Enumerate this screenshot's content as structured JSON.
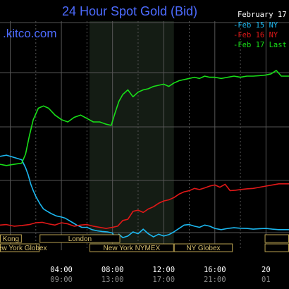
{
  "title": "24 Hour Spot Gold (Bid)",
  "brand": ".kitco.com",
  "date": "February 17",
  "colors": {
    "background": "#000000",
    "grid": "#555555",
    "highlight": "#141c14",
    "session_border": "#b8a050",
    "session_text": "#d8c070"
  },
  "chart_data": {
    "type": "line",
    "title": "24 Hour Spot Gold (Bid)",
    "x_unit": "hours (New York time)",
    "xlim": [
      -0.8,
      21.8
    ],
    "ylim": [
      0,
      10
    ],
    "highlight_range": [
      6.2,
      12.8
    ],
    "ticks": [
      {
        "x": 4,
        "label": "04:00",
        "sub": "09:00"
      },
      {
        "x": 8,
        "label": "08:00",
        "sub": "13:00"
      },
      {
        "x": 12,
        "label": "12:00",
        "sub": "17:00"
      },
      {
        "x": 16,
        "label": "16:00",
        "sub": "21:00"
      },
      {
        "x": 20,
        "label": "20",
        "sub": "01"
      }
    ],
    "sessions": [
      {
        "label": "Kong",
        "row": 0,
        "x0": -0.8,
        "x1": 0.9
      },
      {
        "label": "New York Globex",
        "row": 1,
        "x0": -0.8,
        "x1": 2.3
      },
      {
        "label": "London",
        "row": 0,
        "x0": 2.3,
        "x1": 8.6
      },
      {
        "label": "New York NYMEX",
        "row": 1,
        "x0": 6.2,
        "x1": 12.8
      },
      {
        "label": "NY Globex",
        "row": 1,
        "x0": 12.8,
        "x1": 17.4
      },
      {
        "label": "",
        "row": 0,
        "x0": 19.9,
        "x1": 21.8
      },
      {
        "label": "",
        "row": 1,
        "x0": 19.9,
        "x1": 21.8
      }
    ],
    "series": [
      {
        "name": "Feb 15 NY",
        "color": "#1cb8f0",
        "points": [
          [
            -0.8,
            4.1
          ],
          [
            -0.3,
            4.15
          ],
          [
            0.3,
            4.05
          ],
          [
            0.9,
            3.95
          ],
          [
            1.2,
            3.6
          ],
          [
            1.4,
            3.3
          ],
          [
            1.6,
            2.9
          ],
          [
            1.8,
            2.6
          ],
          [
            2.0,
            2.35
          ],
          [
            2.3,
            2.05
          ],
          [
            2.6,
            1.8
          ],
          [
            2.9,
            1.7
          ],
          [
            3.2,
            1.6
          ],
          [
            3.6,
            1.5
          ],
          [
            4.0,
            1.45
          ],
          [
            4.3,
            1.4
          ],
          [
            4.6,
            1.3
          ],
          [
            4.9,
            1.2
          ],
          [
            5.2,
            1.1
          ],
          [
            5.6,
            1.0
          ],
          [
            6.0,
            1.0
          ],
          [
            6.4,
            0.9
          ],
          [
            6.8,
            0.85
          ],
          [
            7.2,
            0.82
          ],
          [
            7.6,
            0.8
          ],
          [
            8.0,
            0.75
          ],
          [
            8.3,
            0.4
          ],
          [
            8.5,
            0.7
          ],
          [
            8.8,
            0.55
          ],
          [
            9.2,
            0.62
          ],
          [
            9.6,
            0.8
          ],
          [
            10.0,
            0.72
          ],
          [
            10.4,
            0.92
          ],
          [
            10.8,
            0.72
          ],
          [
            11.2,
            0.58
          ],
          [
            11.6,
            0.7
          ],
          [
            12.0,
            0.62
          ],
          [
            12.4,
            0.68
          ],
          [
            12.8,
            0.8
          ],
          [
            13.2,
            0.95
          ],
          [
            13.6,
            1.1
          ],
          [
            14.0,
            1.12
          ],
          [
            14.4,
            1.05
          ],
          [
            14.8,
            1.0
          ],
          [
            15.2,
            1.1
          ],
          [
            15.6,
            1.05
          ],
          [
            16.0,
            0.95
          ],
          [
            16.5,
            0.9
          ],
          [
            17.0,
            0.95
          ],
          [
            17.5,
            0.98
          ],
          [
            18.0,
            0.96
          ],
          [
            18.5,
            0.95
          ],
          [
            19.0,
            0.92
          ],
          [
            19.5,
            0.94
          ],
          [
            20.0,
            0.95
          ],
          [
            20.5,
            0.92
          ],
          [
            21.0,
            0.9
          ],
          [
            21.8,
            0.9
          ]
        ]
      },
      {
        "name": "Feb 16 NY",
        "color": "#e01818",
        "points": [
          [
            -0.8,
            1.1
          ],
          [
            -0.3,
            1.12
          ],
          [
            0.3,
            1.05
          ],
          [
            0.9,
            1.08
          ],
          [
            1.5,
            1.12
          ],
          [
            2.0,
            1.2
          ],
          [
            2.5,
            1.22
          ],
          [
            3.0,
            1.15
          ],
          [
            3.5,
            1.1
          ],
          [
            4.0,
            1.2
          ],
          [
            4.5,
            1.15
          ],
          [
            5.0,
            1.05
          ],
          [
            5.5,
            1.1
          ],
          [
            6.0,
            1.12
          ],
          [
            6.5,
            1.05
          ],
          [
            7.0,
            1.0
          ],
          [
            7.5,
            0.95
          ],
          [
            8.0,
            1.0
          ],
          [
            8.4,
            1.05
          ],
          [
            8.8,
            1.3
          ],
          [
            9.2,
            1.35
          ],
          [
            9.6,
            1.7
          ],
          [
            10.0,
            1.75
          ],
          [
            10.4,
            1.65
          ],
          [
            10.8,
            1.8
          ],
          [
            11.2,
            1.9
          ],
          [
            11.6,
            2.05
          ],
          [
            12.0,
            2.15
          ],
          [
            12.4,
            2.2
          ],
          [
            12.8,
            2.3
          ],
          [
            13.2,
            2.45
          ],
          [
            13.6,
            2.55
          ],
          [
            14.0,
            2.6
          ],
          [
            14.4,
            2.7
          ],
          [
            14.8,
            2.65
          ],
          [
            15.2,
            2.72
          ],
          [
            15.6,
            2.8
          ],
          [
            16.0,
            2.85
          ],
          [
            16.4,
            2.75
          ],
          [
            16.8,
            2.88
          ],
          [
            17.2,
            2.6
          ],
          [
            17.6,
            2.62
          ],
          [
            18.0,
            2.65
          ],
          [
            18.5,
            2.68
          ],
          [
            19.0,
            2.7
          ],
          [
            19.5,
            2.75
          ],
          [
            20.0,
            2.8
          ],
          [
            20.5,
            2.85
          ],
          [
            21.0,
            2.9
          ],
          [
            21.8,
            2.9
          ]
        ]
      },
      {
        "name": "Feb 17 Last",
        "color": "#18e018",
        "points": [
          [
            -0.8,
            3.75
          ],
          [
            -0.3,
            3.7
          ],
          [
            0.3,
            3.75
          ],
          [
            0.9,
            3.8
          ],
          [
            1.2,
            4.2
          ],
          [
            1.5,
            5.0
          ],
          [
            1.8,
            5.7
          ],
          [
            2.2,
            6.2
          ],
          [
            2.6,
            6.3
          ],
          [
            3.0,
            6.2
          ],
          [
            3.5,
            5.9
          ],
          [
            4.0,
            5.7
          ],
          [
            4.5,
            5.6
          ],
          [
            5.0,
            5.8
          ],
          [
            5.5,
            5.9
          ],
          [
            6.0,
            5.75
          ],
          [
            6.5,
            5.6
          ],
          [
            7.0,
            5.6
          ],
          [
            7.5,
            5.5
          ],
          [
            7.9,
            5.45
          ],
          [
            8.2,
            6.0
          ],
          [
            8.5,
            6.5
          ],
          [
            8.8,
            6.8
          ],
          [
            9.2,
            7.0
          ],
          [
            9.6,
            6.7
          ],
          [
            10.0,
            6.9
          ],
          [
            10.4,
            7.0
          ],
          [
            10.8,
            7.05
          ],
          [
            11.2,
            7.15
          ],
          [
            11.6,
            7.2
          ],
          [
            12.0,
            7.25
          ],
          [
            12.4,
            7.15
          ],
          [
            12.8,
            7.3
          ],
          [
            13.2,
            7.4
          ],
          [
            13.6,
            7.45
          ],
          [
            14.0,
            7.5
          ],
          [
            14.4,
            7.55
          ],
          [
            14.8,
            7.5
          ],
          [
            15.2,
            7.6
          ],
          [
            15.6,
            7.55
          ],
          [
            16.0,
            7.55
          ],
          [
            16.5,
            7.5
          ],
          [
            17.0,
            7.55
          ],
          [
            17.5,
            7.6
          ],
          [
            18.0,
            7.55
          ],
          [
            18.5,
            7.6
          ],
          [
            19.0,
            7.6
          ],
          [
            19.5,
            7.62
          ],
          [
            20.0,
            7.65
          ],
          [
            20.4,
            7.7
          ],
          [
            20.8,
            7.85
          ],
          [
            21.2,
            7.6
          ],
          [
            21.8,
            7.6
          ]
        ]
      }
    ]
  }
}
